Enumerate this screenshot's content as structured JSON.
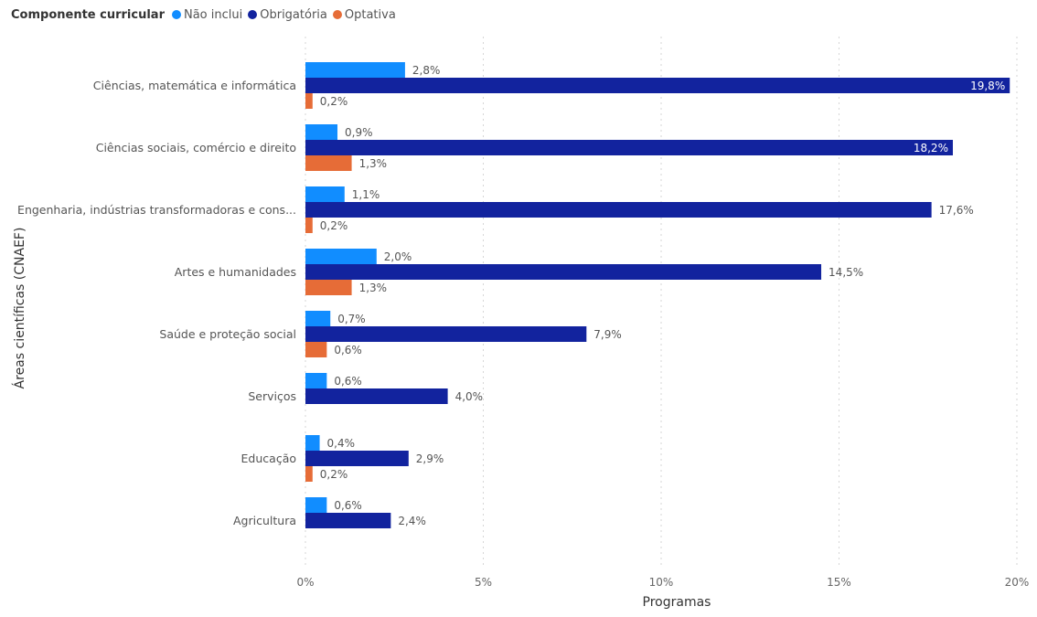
{
  "legend": {
    "title": "Componente curricular",
    "items": [
      {
        "label": "Não inclui",
        "color": "#118DFF"
      },
      {
        "label": "Obrigatória",
        "color": "#12239E"
      },
      {
        "label": "Optativa",
        "color": "#E66C37"
      }
    ]
  },
  "chart_data": {
    "type": "bar",
    "orientation": "horizontal",
    "xlabel": "Programas",
    "ylabel": "Áreas científicas (CNAEF)",
    "xlim": [
      0,
      20
    ],
    "xticks": [
      "0%",
      "5%",
      "10%",
      "15%",
      "20%"
    ],
    "grid": "vertical dotted",
    "legend_position": "top-left",
    "categories": [
      "Ciências, matemática e informática",
      "Ciências sociais, comércio e direito",
      "Engenharia, indústrias transformadoras e cons...",
      "Artes e humanidades",
      "Saúde e proteção social",
      "Serviços",
      "Educação",
      "Agricultura"
    ],
    "series": [
      {
        "name": "Não inclui",
        "color": "#118DFF",
        "values": [
          2.8,
          0.9,
          1.1,
          2.0,
          0.7,
          0.6,
          0.4,
          0.6
        ],
        "labels": [
          "2,8%",
          "0,9%",
          "1,1%",
          "2,0%",
          "0,7%",
          "0,6%",
          "0,4%",
          "0,6%"
        ]
      },
      {
        "name": "Obrigatória",
        "color": "#12239E",
        "values": [
          19.8,
          18.2,
          17.6,
          14.5,
          7.9,
          4.0,
          2.9,
          2.4
        ],
        "labels": [
          "19,8%",
          "18,2%",
          "17,6%",
          "14,5%",
          "7,9%",
          "4,0%",
          "2,9%",
          "2,4%"
        ]
      },
      {
        "name": "Optativa",
        "color": "#E66C37",
        "values": [
          0.2,
          1.3,
          0.2,
          1.3,
          0.6,
          null,
          0.2,
          null
        ],
        "labels": [
          "0,2%",
          "1,3%",
          "0,2%",
          "1,3%",
          "0,6%",
          null,
          "0,2%",
          null
        ]
      }
    ]
  }
}
